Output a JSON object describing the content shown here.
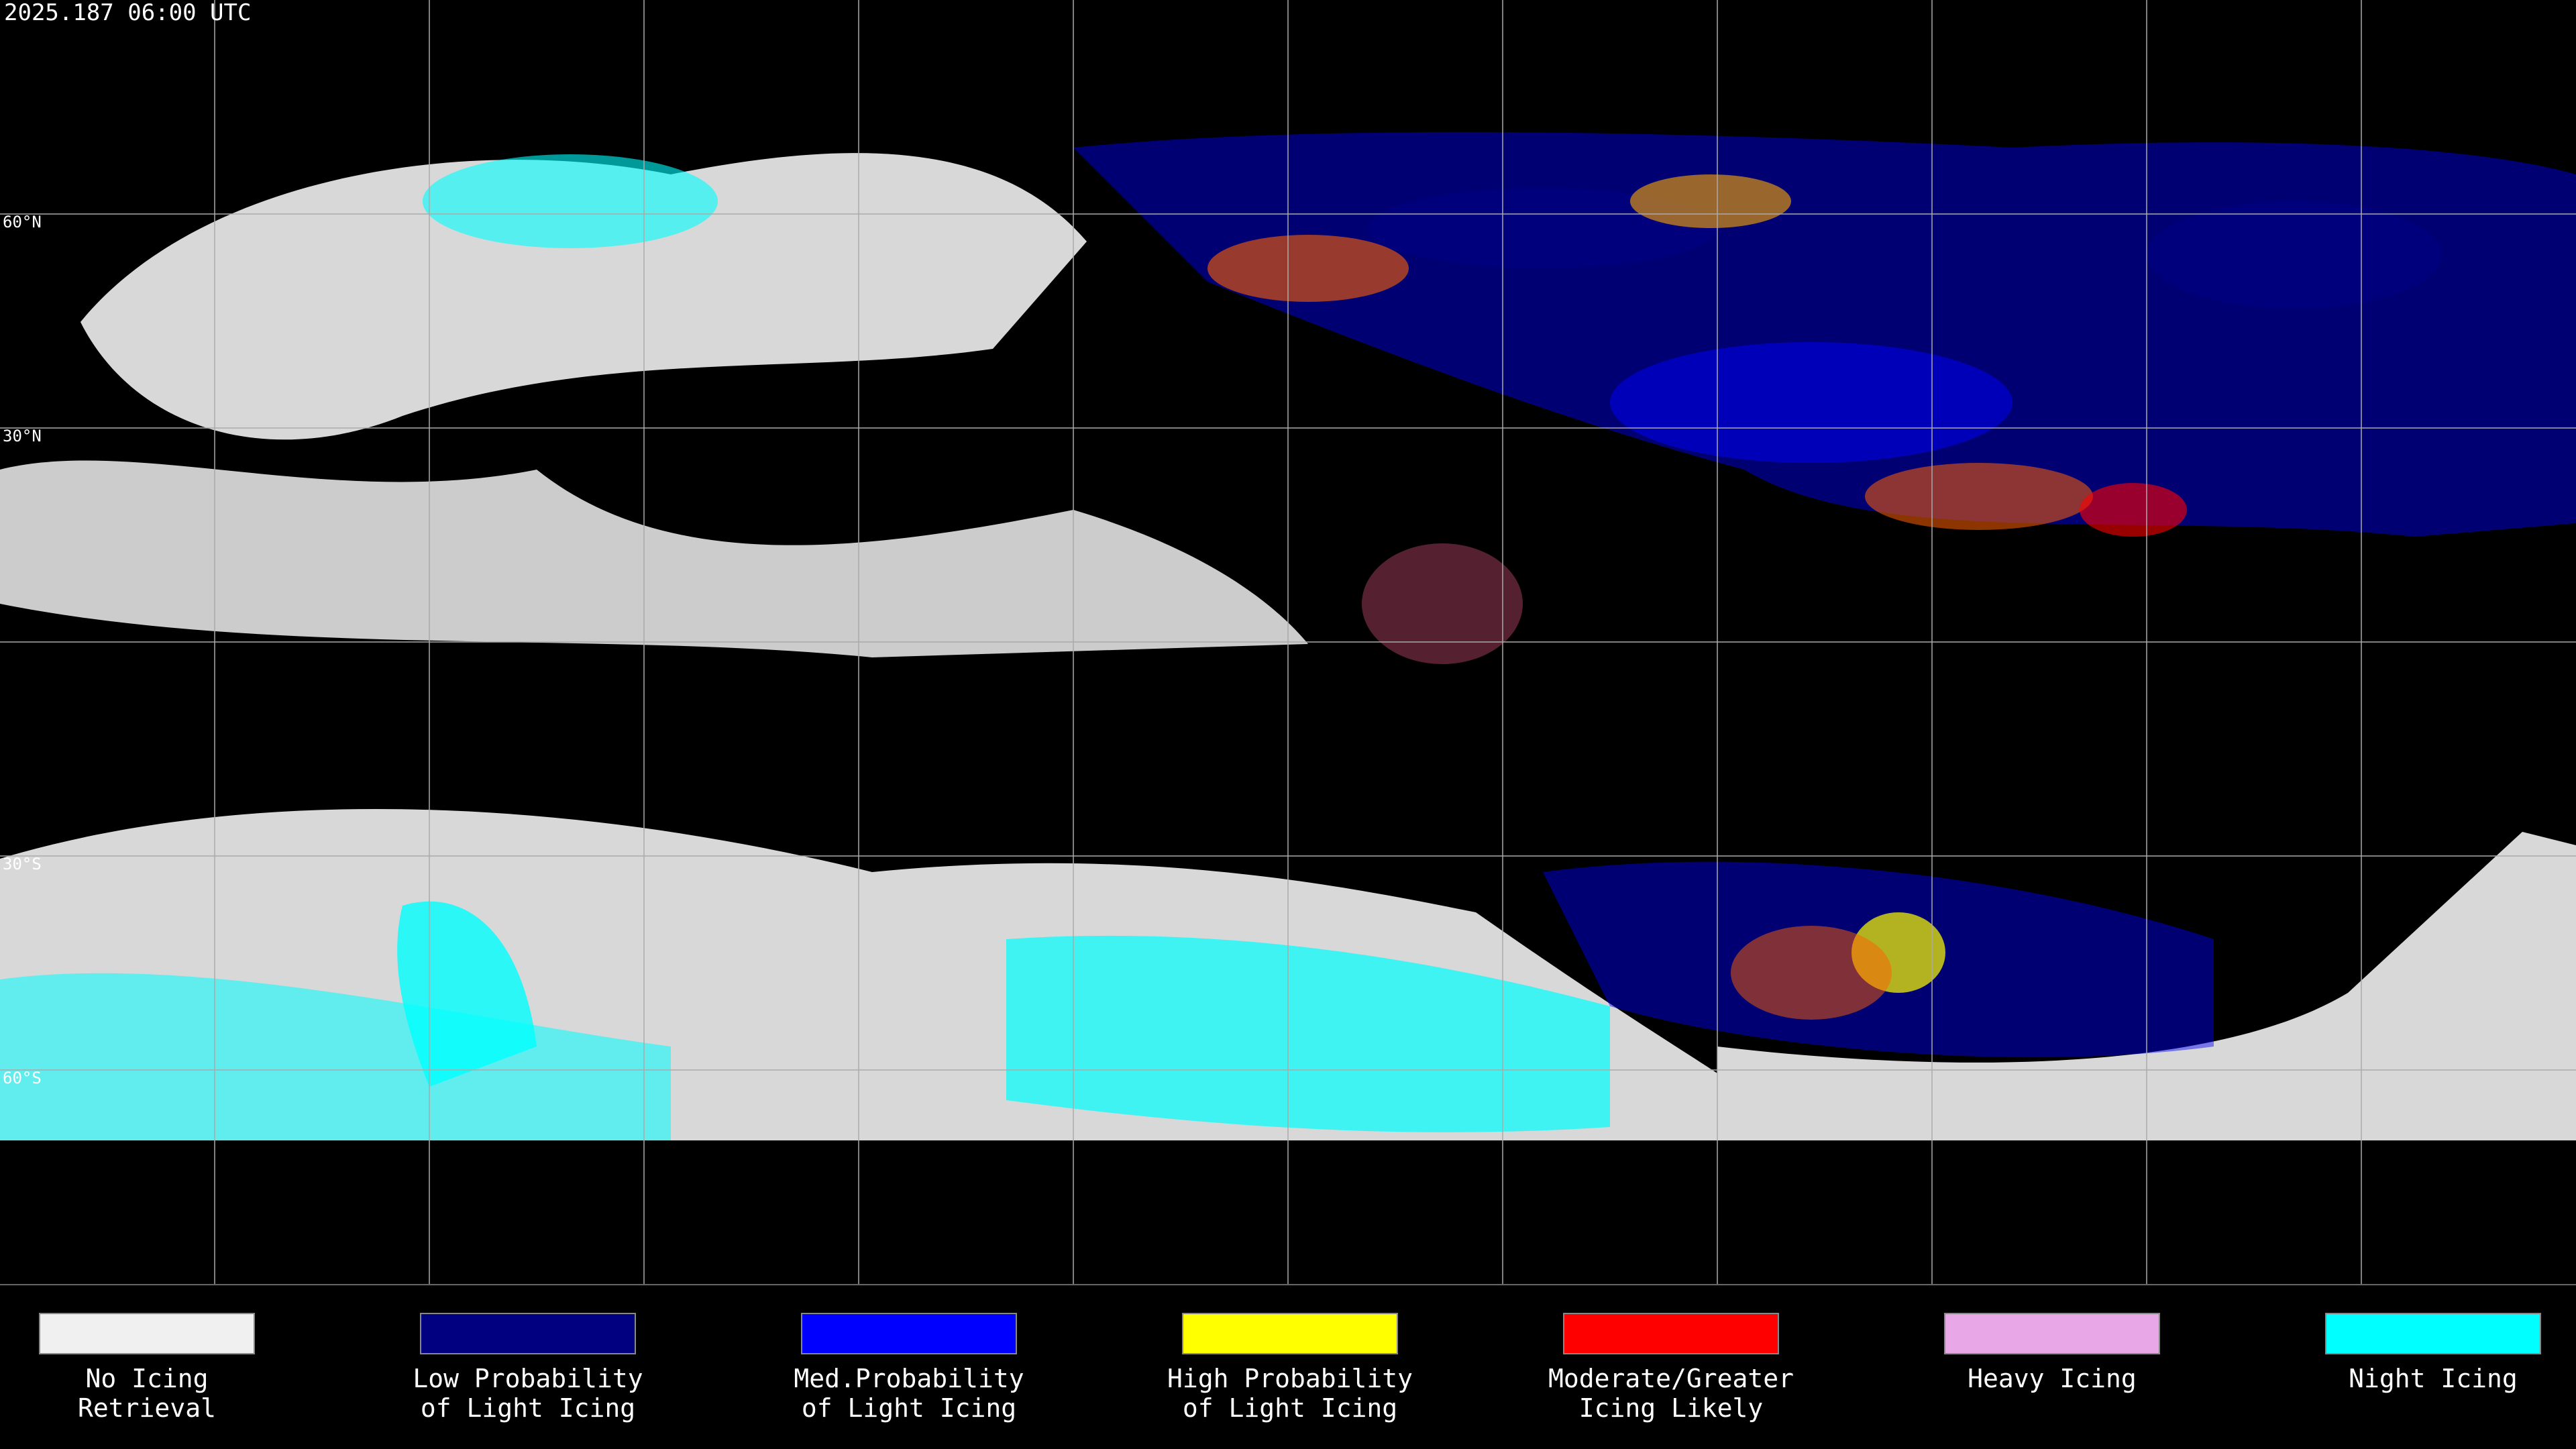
{
  "header": {
    "timestamp": "2025.187 06:00 UTC"
  },
  "map": {
    "lat_labels": [
      "60°N",
      "30°N",
      "30°S",
      "60°S"
    ]
  },
  "legend": {
    "items": [
      {
        "color": "#f0f0f0",
        "lines": [
          "No Icing",
          "Retrieval"
        ]
      },
      {
        "color": "#000080",
        "lines": [
          "Low Probability",
          "of Light Icing"
        ]
      },
      {
        "color": "#0000ff",
        "lines": [
          "Med.Probability",
          "of Light Icing"
        ]
      },
      {
        "color": "#ffff00",
        "lines": [
          "High Probability",
          "of Light Icing"
        ]
      },
      {
        "color": "#ff0000",
        "lines": [
          "Moderate/Greater",
          "Icing Likely"
        ]
      },
      {
        "color": "#e8a8e8",
        "lines": [
          "Heavy Icing"
        ]
      },
      {
        "color": "#00ffff",
        "lines": [
          "Night Icing"
        ]
      }
    ]
  }
}
